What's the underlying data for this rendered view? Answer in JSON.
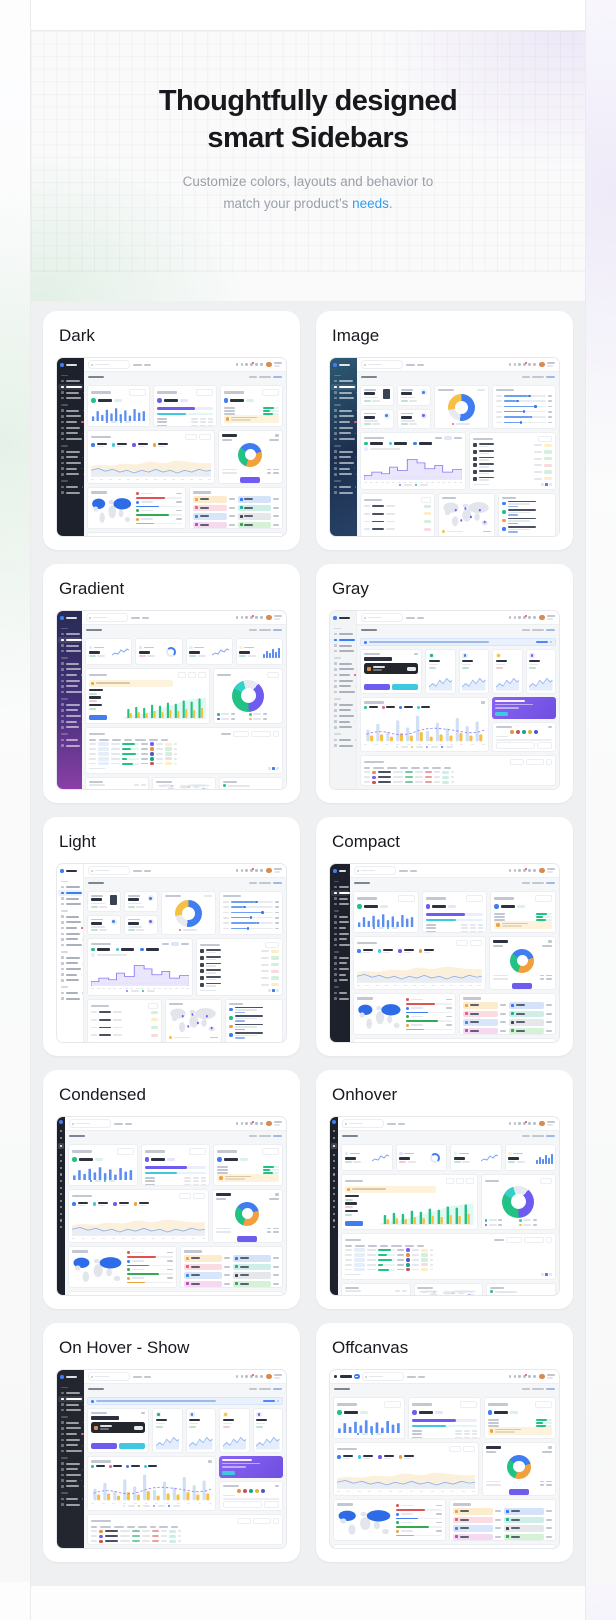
{
  "hero": {
    "title_line1": "Thoughtfully designed",
    "title_line2": "smart Sidebars",
    "subtitle_line1": "Customize colors, layouts and behavior to",
    "subtitle_line2_prefix": "match your product’s ",
    "subtitle_link": "needs",
    "subtitle_period": ".",
    "link_color": "#2f9ff0"
  },
  "cards": [
    {
      "label": "Dark",
      "sidebar_style": "dark",
      "dashboard": "analytics"
    },
    {
      "label": "Image",
      "sidebar_style": "image",
      "dashboard": "ecommerce"
    },
    {
      "label": "Gradient",
      "sidebar_style": "gradient",
      "dashboard": "crm"
    },
    {
      "label": "Gray",
      "sidebar_style": "gray",
      "dashboard": "finance"
    },
    {
      "label": "Light",
      "sidebar_style": "light",
      "dashboard": "ecommerce"
    },
    {
      "label": "Compact",
      "sidebar_style": "compact",
      "dashboard": "analytics"
    },
    {
      "label": "Condensed",
      "sidebar_style": "condensed",
      "dashboard": "analytics"
    },
    {
      "label": "Onhover",
      "sidebar_style": "onhover",
      "dashboard": "crm"
    },
    {
      "label": "On Hover - Show",
      "sidebar_style": "onhover-show",
      "dashboard": "finance"
    },
    {
      "label": "Offcanvas",
      "sidebar_style": "offcanvas",
      "dashboard": "analytics"
    }
  ],
  "palette": {
    "blue": "#3f7df0",
    "light_blue": "#cfe0f6",
    "purple": "#6e5bf0",
    "cyan": "#3ec9e0",
    "green": "#22c284",
    "orange": "#f0a03c",
    "yellow": "#f5c044",
    "red": "#ee5d7a",
    "dark": "#262b36",
    "sidebar_dark": "#1d212c",
    "sidebar_gradient": "linear-gradient(180deg,#272c55 0%,#46317b 55%,#8a3fa6 100%)",
    "sidebar_image": "linear-gradient(155deg,#2d5a74 0%,#1c2f4e 55%,#274166 100%)",
    "text_dark": "#2c3240",
    "bar_light": "#e4e7ec",
    "bar_mid": "#c2c7d1",
    "content_bg": "#f5f6f8",
    "border": "#eceef2",
    "map_land": "#e2e5eb",
    "map_active": "#2e6be6",
    "avatar": "#d98b4f"
  }
}
